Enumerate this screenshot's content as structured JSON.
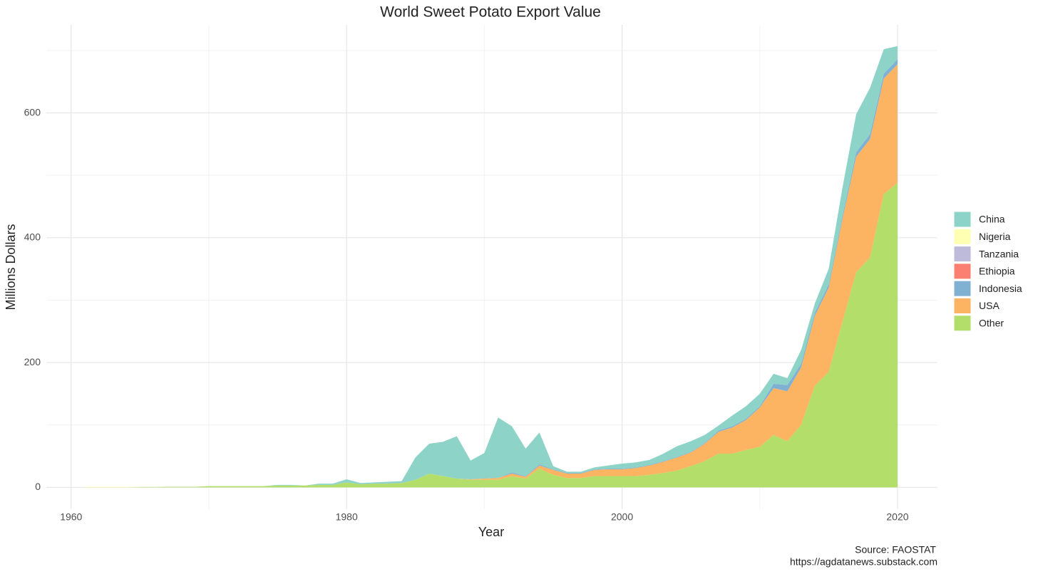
{
  "chart_data": {
    "type": "stacked_area",
    "title": "World Sweet Potato Export Value",
    "x_label": "Year",
    "y_label": "Millions Dollars",
    "caption": [
      "Source: FAOSTAT",
      "https://agdatanews.substack.com"
    ],
    "x": [
      1961,
      1962,
      1963,
      1964,
      1965,
      1966,
      1967,
      1968,
      1969,
      1970,
      1971,
      1972,
      1973,
      1974,
      1975,
      1976,
      1977,
      1978,
      1979,
      1980,
      1981,
      1982,
      1983,
      1984,
      1985,
      1986,
      1987,
      1988,
      1989,
      1990,
      1991,
      1992,
      1993,
      1994,
      1995,
      1996,
      1997,
      1998,
      1999,
      2000,
      2001,
      2002,
      2003,
      2004,
      2005,
      2006,
      2007,
      2008,
      2009,
      2010,
      2011,
      2012,
      2013,
      2014,
      2015,
      2016,
      2017,
      2018,
      2019,
      2020
    ],
    "series": [
      {
        "name": "China",
        "color": "#8dd3c7",
        "values": [
          0,
          0,
          0,
          0,
          0,
          0,
          0,
          0,
          0,
          0,
          0,
          0,
          0,
          0,
          1,
          1,
          0,
          2,
          2,
          5,
          2,
          2,
          3,
          3,
          36,
          48,
          55,
          68,
          30,
          41,
          97,
          74,
          44,
          51,
          5,
          2,
          2,
          3,
          5,
          8,
          8,
          8,
          12,
          17,
          17,
          13,
          8,
          17,
          20,
          20,
          16,
          11,
          22,
          15,
          25,
          45,
          61,
          74,
          39,
          21
        ]
      },
      {
        "name": "Nigeria",
        "color": "#ffffb3",
        "values": [
          1,
          1,
          1,
          1,
          0,
          0,
          0,
          0,
          0,
          0,
          0,
          0,
          0,
          0,
          0,
          0,
          0,
          0,
          0,
          0,
          0,
          0,
          0,
          0,
          0,
          0,
          0,
          0,
          0,
          0,
          0,
          0,
          0,
          0,
          0,
          0,
          0,
          0,
          0,
          0,
          0,
          0,
          0,
          0,
          0,
          0,
          0,
          0,
          0,
          0,
          0,
          0,
          0,
          0,
          0,
          0,
          0,
          0,
          0,
          0
        ]
      },
      {
        "name": "Tanzania",
        "color": "#bebada",
        "values": [
          0,
          0,
          0,
          0,
          0,
          0,
          0,
          0,
          0,
          0,
          0,
          0,
          0,
          0,
          0,
          0,
          0,
          0,
          0,
          0,
          0,
          0,
          0,
          0,
          0,
          0,
          0,
          0,
          0,
          0,
          0,
          0,
          0,
          0,
          0,
          0,
          0,
          0,
          0,
          0,
          0,
          0,
          0,
          0,
          0,
          0,
          0,
          0,
          0,
          0,
          0,
          0,
          0,
          0,
          0,
          0,
          0,
          0,
          0,
          0
        ]
      },
      {
        "name": "Ethiopia",
        "color": "#fb8072",
        "values": [
          0,
          0,
          0,
          0,
          0,
          0,
          0,
          0,
          0,
          0,
          0,
          0,
          0,
          0,
          0,
          0,
          0,
          0,
          0,
          0,
          0,
          0,
          0,
          0,
          0,
          0,
          0,
          0,
          0,
          0,
          0,
          0,
          0,
          0,
          0,
          0,
          0,
          0,
          0,
          0,
          0,
          0,
          0,
          0,
          0,
          0,
          0,
          0,
          0,
          0,
          0,
          0,
          0,
          0,
          0,
          0,
          0,
          0,
          0,
          0
        ]
      },
      {
        "name": "Indonesia",
        "color": "#80b1d3",
        "values": [
          0,
          0,
          0,
          0,
          0,
          0,
          0,
          0,
          0,
          0,
          0,
          0,
          0,
          0,
          0,
          0,
          0,
          0,
          0,
          0,
          0,
          0,
          0,
          0,
          0,
          0,
          0,
          0,
          0,
          0,
          0,
          2,
          1,
          2,
          1,
          1,
          1,
          1,
          1,
          1,
          1,
          1,
          1,
          1,
          1,
          1,
          2,
          2,
          2,
          2,
          7,
          10,
          6,
          5,
          5,
          5,
          7,
          8,
          8,
          8
        ]
      },
      {
        "name": "USA",
        "color": "#fdb462",
        "values": [
          0,
          0,
          0,
          0,
          0,
          0,
          0,
          0,
          0,
          0,
          0,
          0,
          0,
          0,
          0,
          0,
          0,
          0,
          0,
          0,
          0,
          0,
          0,
          0,
          0,
          0,
          0,
          0,
          1,
          2,
          3,
          4,
          3,
          5,
          8,
          7,
          7,
          10,
          11,
          11,
          13,
          15,
          18,
          21,
          22,
          28,
          35,
          42,
          48,
          63,
          75,
          80,
          92,
          112,
          135,
          165,
          185,
          190,
          185,
          190
        ]
      },
      {
        "name": "Other",
        "color": "#b3de69",
        "values": [
          0,
          0,
          0,
          0,
          0.5,
          0.5,
          1,
          1,
          1,
          2,
          2,
          2,
          2,
          2,
          3,
          3,
          3,
          4,
          4,
          8,
          5,
          6,
          6,
          7,
          12,
          22,
          18,
          14,
          12,
          12,
          12,
          18,
          14,
          30,
          20,
          15,
          15,
          18,
          18,
          18,
          18,
          20,
          23,
          27,
          34,
          42,
          54,
          54,
          60,
          65,
          84,
          74,
          100,
          163,
          185,
          265,
          345,
          368,
          470,
          488
        ]
      }
    ],
    "xlim": [
      1958.2,
      2022.9
    ],
    "ylim": [
      -35,
      741
    ],
    "xticks": [
      1960,
      1980,
      2000,
      2020
    ],
    "yticks": [
      0,
      200,
      400,
      600
    ],
    "xminor": [
      1970,
      1990,
      2010
    ],
    "yminor": [
      100,
      300,
      500,
      700
    ],
    "grid": true,
    "legend": "right"
  }
}
